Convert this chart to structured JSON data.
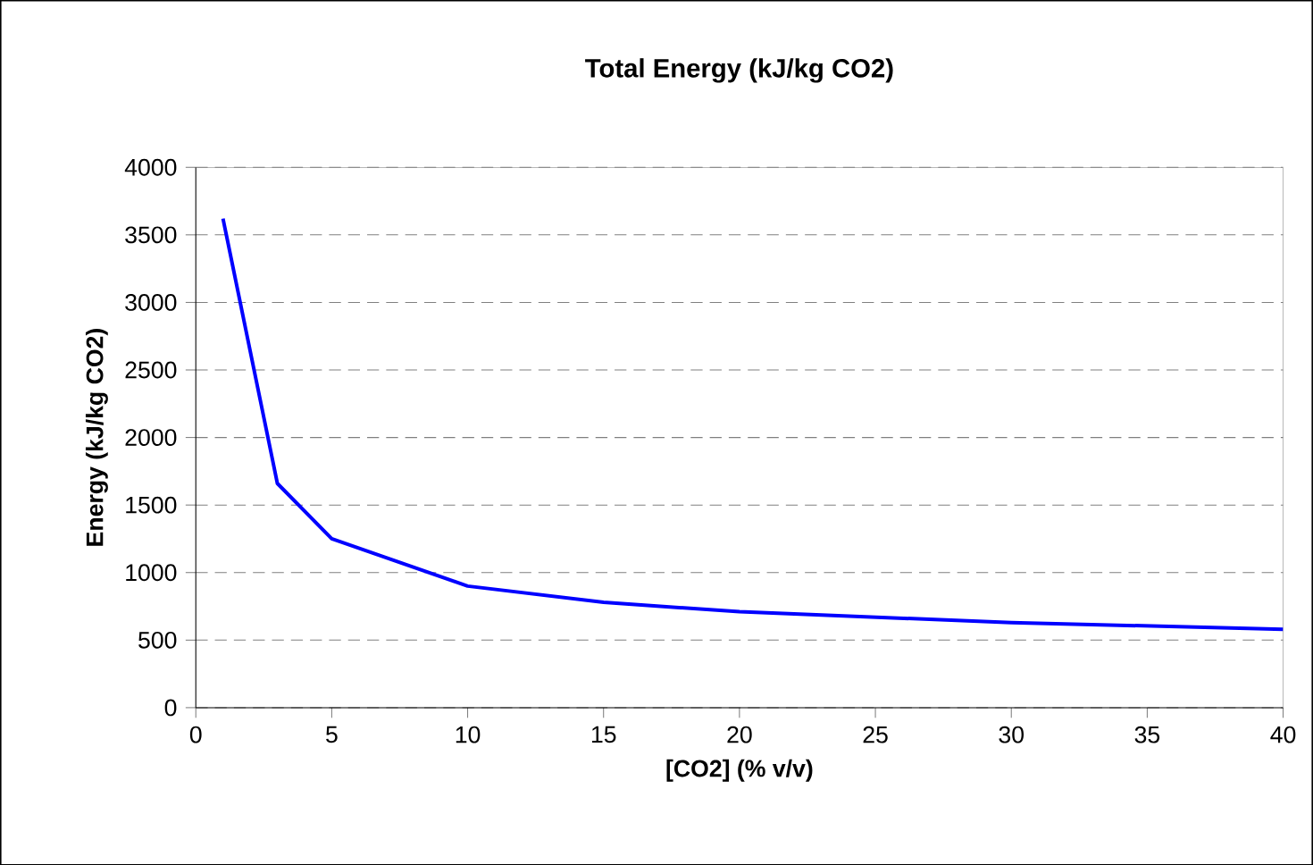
{
  "chart_data": {
    "type": "line",
    "title": "Total Energy (kJ/kg CO2)",
    "xlabel": "[CO2] (% v/v)",
    "ylabel": "Energy (kJ/kg CO2)",
    "series": [
      {
        "color": "#0000ff",
        "x": [
          1,
          3,
          5,
          10,
          15,
          20,
          30,
          40
        ],
        "values": [
          3620,
          1660,
          1250,
          900,
          780,
          710,
          630,
          580
        ]
      }
    ],
    "xlim": [
      0,
      40
    ],
    "xticks": [
      0,
      5,
      10,
      15,
      20,
      25,
      30,
      35,
      40
    ],
    "ylim": [
      0,
      4000
    ],
    "yticks": [
      0,
      500,
      1000,
      1500,
      2000,
      2500,
      3000,
      3500,
      4000
    ],
    "grid": "y",
    "legend": false,
    "marker": "none",
    "line_style": "solid"
  }
}
